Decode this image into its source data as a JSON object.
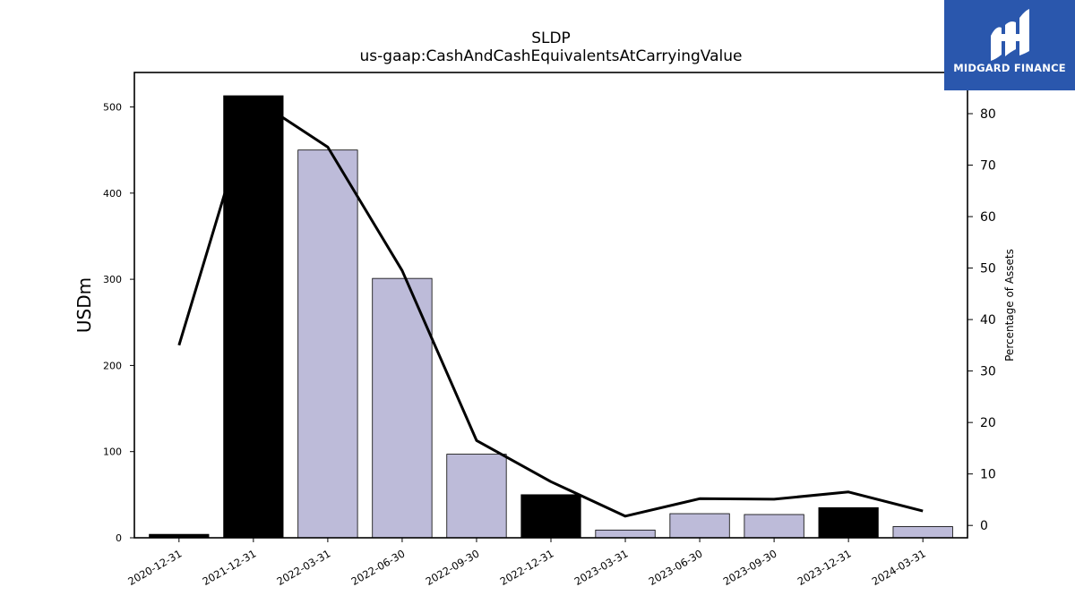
{
  "chart_data": {
    "type": "bar",
    "title": "SLDP",
    "subtitle": "us-gaap:CashAndCashEquivalentsAtCarryingValue",
    "ylabel": "USDm",
    "y2label": "Percentage of Assets",
    "categories": [
      "2020-12-31",
      "2021-12-31",
      "2022-03-31",
      "2022-06-30",
      "2022-09-30",
      "2022-12-31",
      "2023-03-31",
      "2023-06-30",
      "2023-09-30",
      "2023-12-31",
      "2024-03-31"
    ],
    "bars": {
      "values": [
        4,
        513,
        450,
        301,
        97,
        50,
        9,
        28,
        27,
        35,
        13
      ],
      "colors": [
        "#000000",
        "#000000",
        "#bdbbd9",
        "#bdbbd9",
        "#bdbbd9",
        "#000000",
        "#bdbbd9",
        "#bdbbd9",
        "#bdbbd9",
        "#000000",
        "#bdbbd9"
      ]
    },
    "series": [
      {
        "name": "Percentage of Assets",
        "axis": "right",
        "color": "#000000",
        "values": [
          35,
          83,
          73.5,
          49.5,
          16.5,
          8.5,
          1.8,
          5.2,
          5.1,
          6.5,
          2.8
        ]
      }
    ],
    "ylim": [
      0,
      540
    ],
    "yticks": [
      0,
      100,
      200,
      300,
      400,
      500
    ],
    "y2lim": [
      -2.4,
      88
    ],
    "y2ticks": [
      0,
      10,
      20,
      30,
      40,
      50,
      60,
      70,
      80
    ],
    "grid": false
  },
  "brand": {
    "name": "MIDGARD FINANCE",
    "color": "#2a57ad"
  }
}
